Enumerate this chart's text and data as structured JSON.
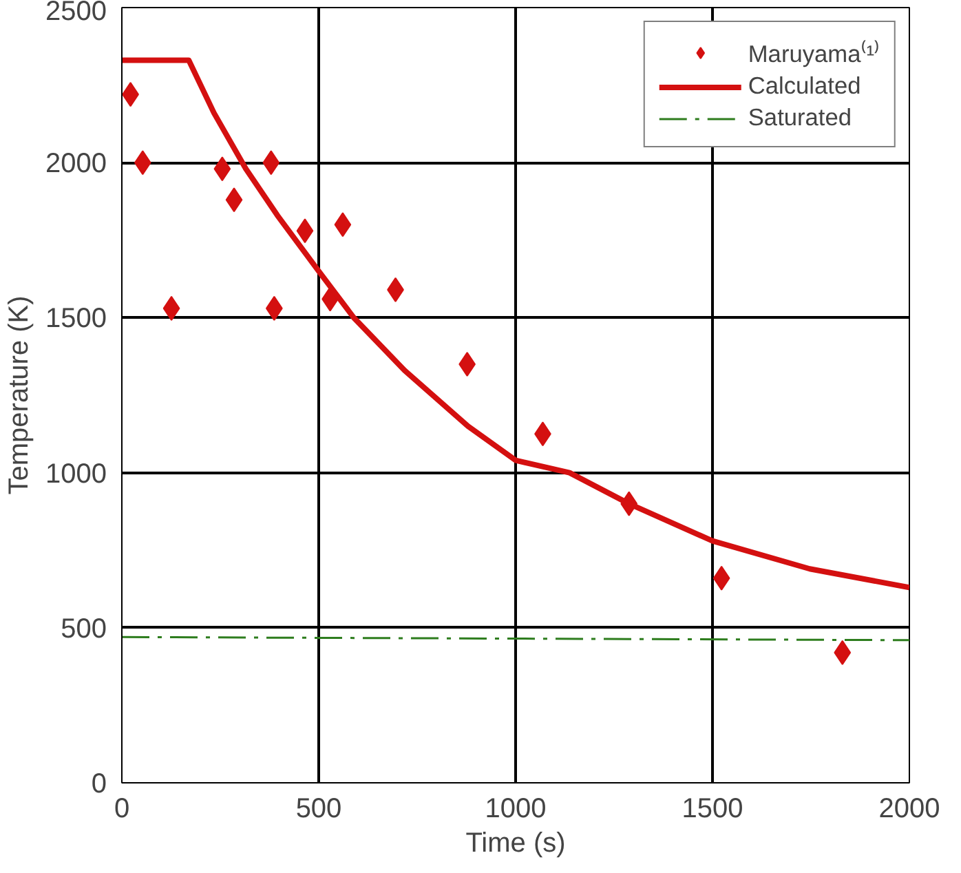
{
  "chart_data": {
    "type": "scatter",
    "xlabel": "Time (s)",
    "ylabel": "Temperature (K)",
    "xlim": [
      0,
      2000
    ],
    "ylim": [
      0,
      2500
    ],
    "xticks": [
      0,
      500,
      1000,
      1500,
      2000
    ],
    "yticks": [
      0,
      500,
      1000,
      1500,
      2000,
      2500
    ],
    "grid": true,
    "legend": "top right",
    "series": [
      {
        "name": "Maruyama⁽¹⁾",
        "marker": "diamond",
        "color": "#d41010",
        "x": [
          22,
          53,
          126,
          255,
          285,
          379,
          387,
          465,
          529,
          561,
          695,
          877,
          1069,
          1288,
          1523,
          1830
        ],
        "values": [
          2220,
          2000,
          1530,
          1980,
          1880,
          2000,
          1530,
          1780,
          1560,
          1800,
          1590,
          1350,
          1125,
          900,
          660,
          420
        ]
      },
      {
        "name": "Calculated",
        "type": "line",
        "color": "#d41010",
        "marker": "none",
        "line_style": "solid",
        "x": [
          0,
          170,
          234,
          315,
          395,
          500,
          589,
          718,
          879,
          1000,
          1137,
          1288,
          1500,
          1747,
          2000
        ],
        "values": [
          2330,
          2330,
          2160,
          1980,
          1830,
          1650,
          1500,
          1330,
          1150,
          1040,
          1000,
          900,
          780,
          690,
          630
        ]
      },
      {
        "name": "Saturated",
        "type": "line",
        "color": "#2e7d1e",
        "marker": "none",
        "line_style": "dashdot",
        "x": [
          0,
          2000
        ],
        "values": [
          470,
          460
        ]
      }
    ]
  }
}
